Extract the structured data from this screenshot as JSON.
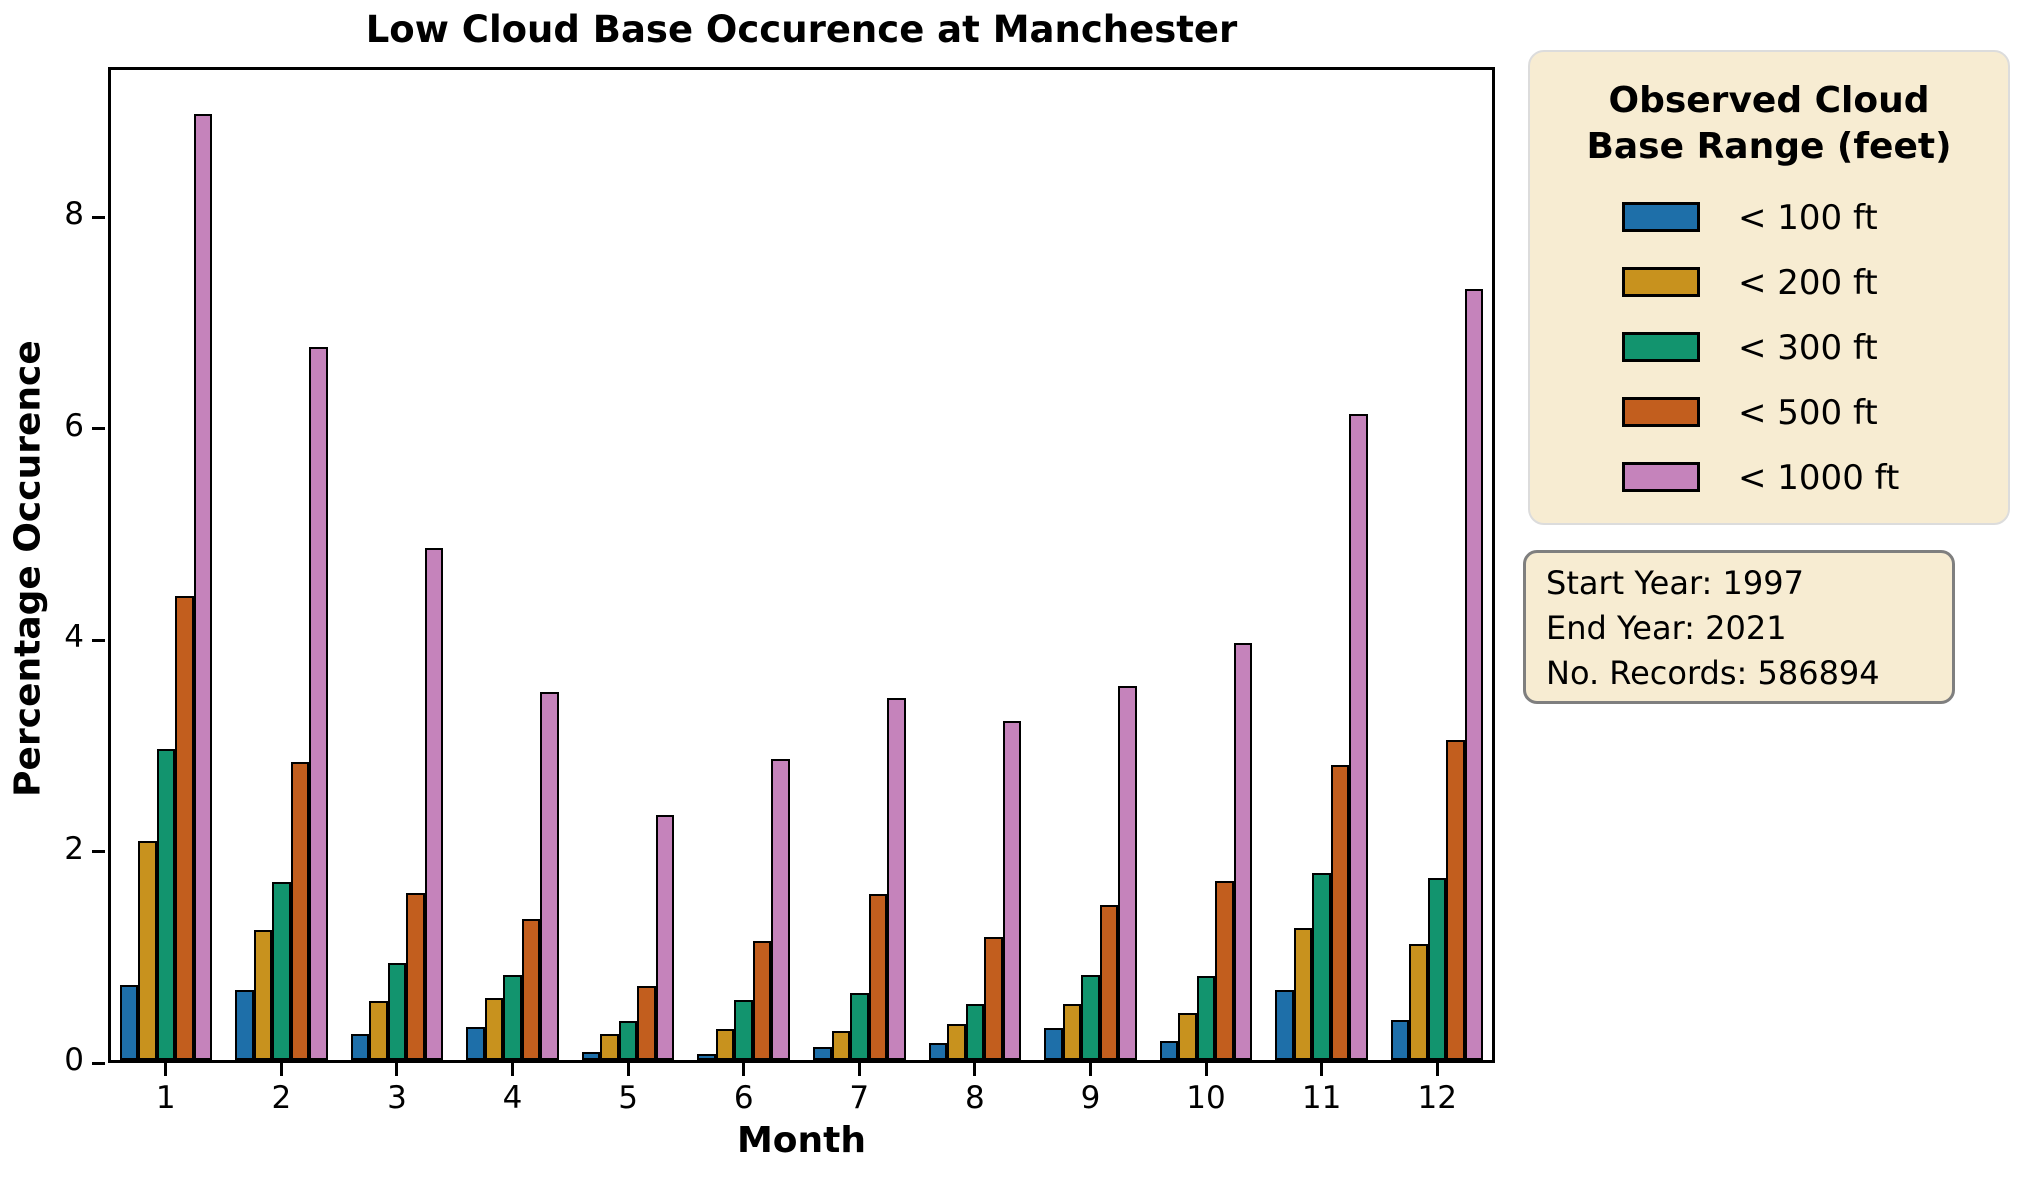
{
  "chart_data": {
    "type": "bar",
    "title": "Low Cloud Base Occurence at Manchester",
    "xlabel": "Month",
    "ylabel": "Percentage Occurence",
    "categories": [
      1,
      2,
      3,
      4,
      5,
      6,
      7,
      8,
      9,
      10,
      11,
      12
    ],
    "ylim": [
      0,
      9.42
    ],
    "yticks": [
      0,
      2,
      4,
      6,
      8
    ],
    "grid": false,
    "bar_edge_color": "#000000",
    "legend_position": "outside-right",
    "series": [
      {
        "name": "< 100 ft",
        "color": "#1e6fa9",
        "values": [
          0.71,
          0.66,
          0.25,
          0.31,
          0.08,
          0.06,
          0.12,
          0.16,
          0.3,
          0.18,
          0.66,
          0.38
        ]
      },
      {
        "name": "< 200 ft",
        "color": "#c8921e",
        "values": [
          2.07,
          1.23,
          0.56,
          0.59,
          0.25,
          0.29,
          0.27,
          0.34,
          0.53,
          0.44,
          1.25,
          1.1
        ]
      },
      {
        "name": "< 300 ft",
        "color": "#12946e",
        "values": [
          2.94,
          1.68,
          0.92,
          0.8,
          0.37,
          0.57,
          0.63,
          0.53,
          0.8,
          0.79,
          1.77,
          1.72
        ]
      },
      {
        "name": "< 500 ft",
        "color": "#c25e1e",
        "values": [
          4.39,
          2.82,
          1.58,
          1.33,
          0.7,
          1.13,
          1.57,
          1.16,
          1.47,
          1.69,
          2.79,
          3.03
        ]
      },
      {
        "name": "< 1000 ft",
        "color": "#c583bb",
        "values": [
          8.95,
          6.74,
          4.84,
          3.48,
          2.32,
          2.85,
          3.42,
          3.21,
          3.54,
          3.94,
          6.11,
          7.29
        ]
      }
    ]
  },
  "legend": {
    "title_line1": "Observed Cloud",
    "title_line2": "Base Range (feet)"
  },
  "info_box": {
    "lines": [
      "Start Year: 1997",
      "End Year: 2021",
      "No. Records: 586894"
    ]
  },
  "colors": {
    "box_background": "#f7ecd2",
    "legend_border": "#dcdcdc",
    "info_border": "#7f7f7f",
    "axis": "#000000"
  }
}
